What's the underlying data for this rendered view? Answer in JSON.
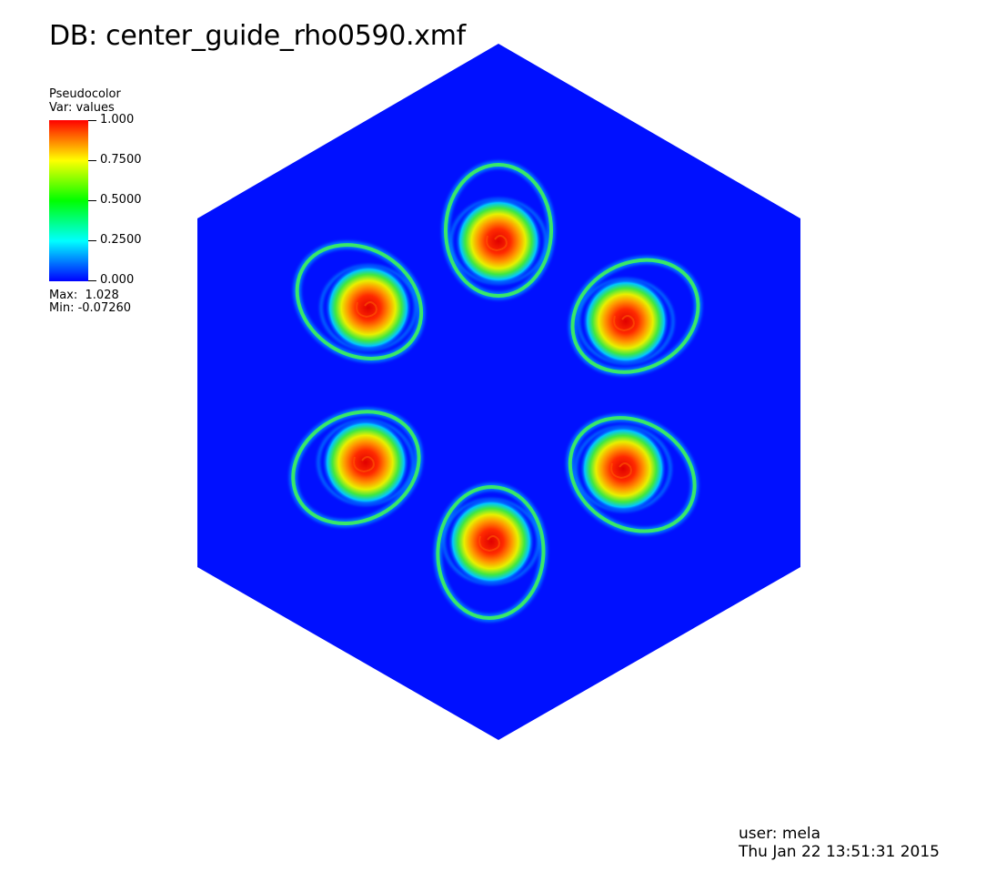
{
  "title": "DB: center_guide_rho0590.xmf",
  "legend": {
    "plot_type": "Pseudocolor",
    "variable": "Var: values",
    "ticks": [
      "1.000",
      "0.7500",
      "0.5000",
      "0.2500",
      "0.000"
    ],
    "max_label": "Max:  1.028",
    "min_label": "Min: -0.07260",
    "colors": [
      "#ff0000",
      "#ffff00",
      "#00ff00",
      "#00ffff",
      "#0000ff"
    ]
  },
  "footer": {
    "user": "user: mela",
    "date": "Thu Jan 22 13:51:31 2015"
  },
  "chart_data": {
    "type": "heatmap",
    "variable": "values",
    "range": [
      0.0,
      1.0
    ],
    "data_max": 1.028,
    "data_min": -0.0726,
    "background_value": 0.0,
    "domain_shape": "hexagon",
    "features": [
      {
        "name": "vortex-top",
        "peak_value": 1.0
      },
      {
        "name": "vortex-upper-right",
        "peak_value": 1.0
      },
      {
        "name": "vortex-lower-right",
        "peak_value": 1.0
      },
      {
        "name": "vortex-bottom",
        "peak_value": 1.0
      },
      {
        "name": "vortex-lower-left",
        "peak_value": 1.0
      },
      {
        "name": "vortex-upper-left",
        "peak_value": 1.0
      }
    ]
  }
}
